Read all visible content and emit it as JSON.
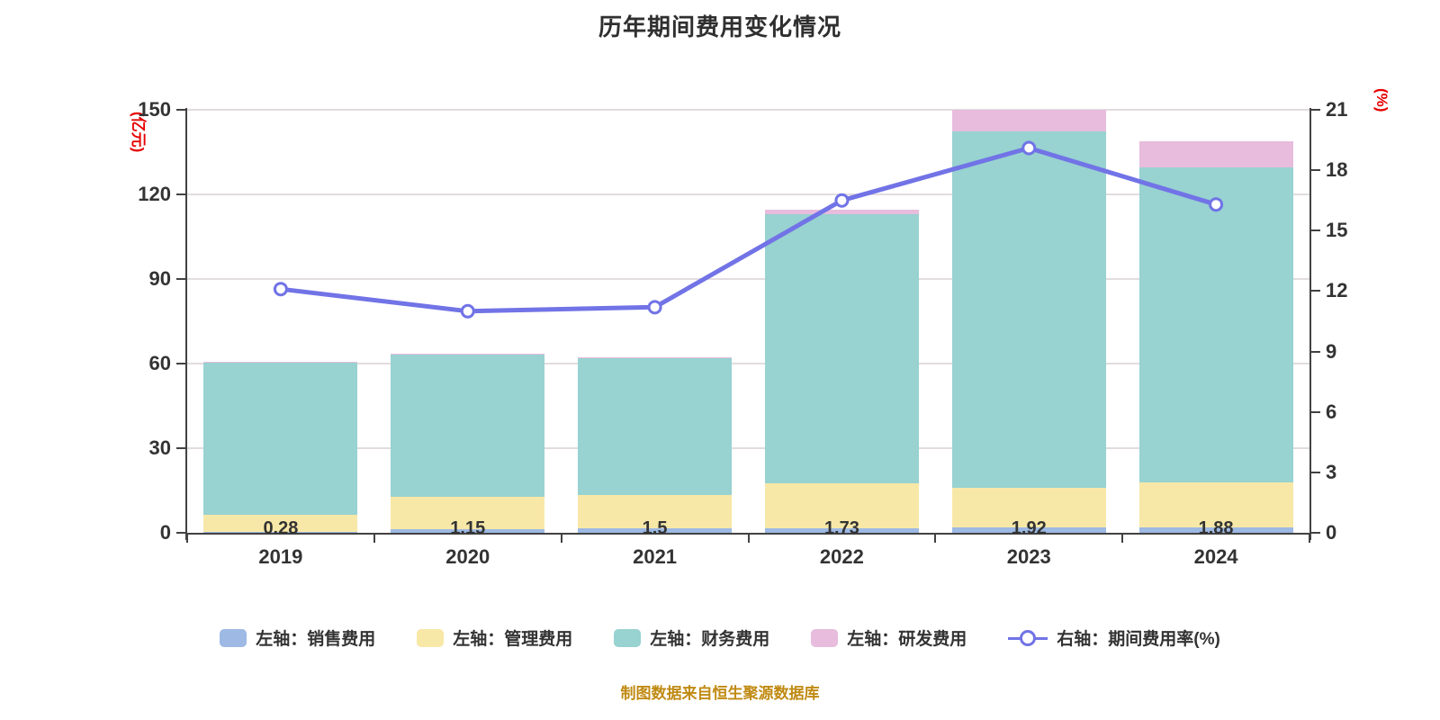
{
  "title": "历年期间费用变化情况",
  "caption": "制图数据来自恒生聚源数据库",
  "left_axis": {
    "label": "(亿元)",
    "ticks": [
      0,
      30,
      60,
      90,
      120,
      150
    ],
    "max": 150
  },
  "right_axis": {
    "label": "(%)",
    "ticks": [
      0,
      3,
      6,
      9,
      12,
      15,
      18,
      21
    ],
    "max": 21
  },
  "colors": {
    "title_text": "#2f2f2f",
    "tick_text": "#333333",
    "axis_line": "#424242",
    "grid_line": "#e2dce0",
    "axis_name_red": "#e60000",
    "caption_gold": "#c08a12",
    "sales_blue": "#9db9e4",
    "admin_yellow": "#f8e8a7",
    "finance_teal": "#98d2d1",
    "rd_pink": "#e7bcdc",
    "rate_line": "#7173e6",
    "marker_fill": "#ffffff"
  },
  "chart_data": {
    "type": "bar",
    "subtype": "stacked-bar-with-line",
    "categories": [
      "2019",
      "2020",
      "2021",
      "2022",
      "2023",
      "2024"
    ],
    "series": [
      {
        "name": "左轴：销售费用",
        "axis": "left",
        "kind": "bar",
        "color_key": "sales_blue",
        "values": [
          0.28,
          1.15,
          1.5,
          1.73,
          1.92,
          1.88
        ],
        "labels": [
          "0.28",
          "1.15",
          "1.5",
          "1.73",
          "1.92",
          "1.88"
        ]
      },
      {
        "name": "左轴：管理费用",
        "axis": "left",
        "kind": "bar",
        "color_key": "admin_yellow",
        "values": [
          6.1,
          11.7,
          11.9,
          15.9,
          14.1,
          16.0
        ]
      },
      {
        "name": "左轴：财务费用",
        "axis": "left",
        "kind": "bar",
        "color_key": "finance_teal",
        "values": [
          53.8,
          50.2,
          48.4,
          95.5,
          126.2,
          111.7
        ]
      },
      {
        "name": "左轴：研发费用",
        "axis": "left",
        "kind": "bar",
        "color_key": "rd_pink",
        "values": [
          0.6,
          0.6,
          0.6,
          1.3,
          7.7,
          9.3
        ]
      },
      {
        "name": "右轴：期间费用率(%)",
        "axis": "right",
        "kind": "line",
        "color_key": "rate_line",
        "values": [
          12.1,
          11.0,
          11.2,
          16.5,
          19.1,
          16.3
        ]
      }
    ],
    "ylim_left": [
      0,
      150
    ],
    "ylim_right": [
      0,
      21
    ],
    "grid": true,
    "legend_position": "bottom"
  }
}
